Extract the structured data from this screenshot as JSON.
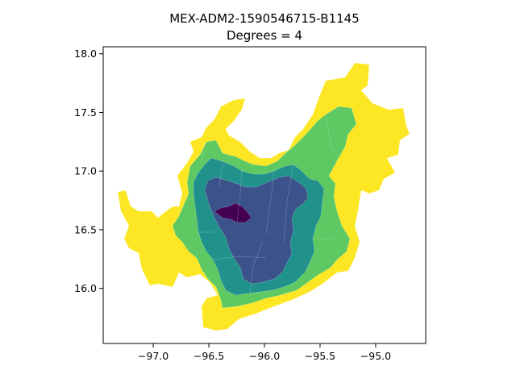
{
  "chart_data": {
    "type": "choropleth",
    "title_lines": [
      "MEX-ADM2-1590546715-B1145",
      "Degrees = 4"
    ],
    "xlabel": "",
    "ylabel": "",
    "xlim": [
      -97.45,
      -94.55
    ],
    "ylim": [
      15.53,
      18.06
    ],
    "x_ticks": [
      {
        "value": -97.0,
        "label": "−97.0"
      },
      {
        "value": -96.5,
        "label": "−96.5"
      },
      {
        "value": -96.0,
        "label": "−96.0"
      },
      {
        "value": -95.5,
        "label": "−95.5"
      },
      {
        "value": -95.0,
        "label": "−95.0"
      }
    ],
    "y_ticks": [
      {
        "value": 16.0,
        "label": "16.0"
      },
      {
        "value": 16.5,
        "label": "16.5"
      },
      {
        "value": 17.0,
        "label": "17.0"
      },
      {
        "value": 17.5,
        "label": "17.5"
      },
      {
        "value": 18.0,
        "label": "18.0"
      }
    ],
    "grid": false,
    "legend": "none",
    "colormap": "viridis",
    "class_colors": {
      "0": "#440154",
      "1": "#3b528b",
      "2": "#21918c",
      "3": "#5ec962",
      "4": "#fde725"
    }
  }
}
